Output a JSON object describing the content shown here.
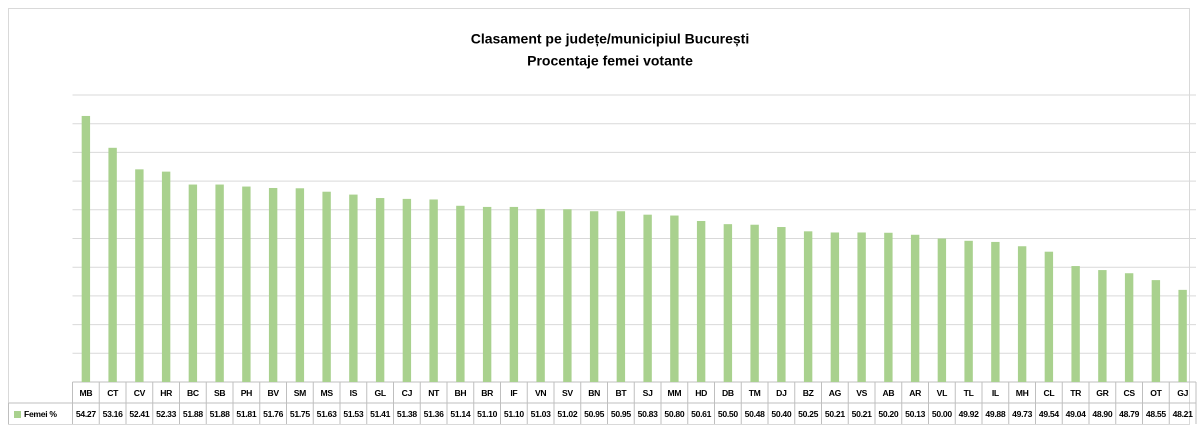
{
  "chart_data": {
    "type": "bar",
    "title": "Clasament pe județe/municipiul București",
    "subtitle": "Procentaje femei votante",
    "categories": [
      "MB",
      "CT",
      "CV",
      "HR",
      "BC",
      "SB",
      "PH",
      "BV",
      "SM",
      "MS",
      "IS",
      "GL",
      "CJ",
      "NT",
      "BH",
      "BR",
      "IF",
      "VN",
      "SV",
      "BN",
      "BT",
      "SJ",
      "MM",
      "HD",
      "DB",
      "TM",
      "DJ",
      "BZ",
      "AG",
      "VS",
      "AB",
      "AR",
      "VL",
      "TL",
      "IL",
      "MH",
      "CL",
      "TR",
      "GR",
      "CS",
      "OT",
      "GJ"
    ],
    "series": [
      {
        "name": "Femei %",
        "color": "#a9d18e",
        "values": [
          54.27,
          53.16,
          52.41,
          52.33,
          51.88,
          51.88,
          51.81,
          51.76,
          51.75,
          51.63,
          51.53,
          51.41,
          51.38,
          51.36,
          51.14,
          51.1,
          51.1,
          51.03,
          51.02,
          50.95,
          50.95,
          50.83,
          50.8,
          50.61,
          50.5,
          50.48,
          50.4,
          50.25,
          50.21,
          50.21,
          50.2,
          50.13,
          50.0,
          49.92,
          49.88,
          49.73,
          49.54,
          49.04,
          48.9,
          48.79,
          48.55,
          48.21
        ],
        "value_labels": [
          "54.27",
          "53.16",
          "52.41",
          "52.33",
          "51.88",
          "51.88",
          "51.81",
          "51.76",
          "51.75",
          "51.63",
          "51.53",
          "51.41",
          "51.38",
          "51.36",
          "51.14",
          "51.10",
          "51.10",
          "51.03",
          "51.02",
          "50.95",
          "50.95",
          "50.83",
          "50.80",
          "50.61",
          "50.50",
          "50.48",
          "50.40",
          "50.25",
          "50.21",
          "50.21",
          "50.20",
          "50.13",
          "50.00",
          "49.92",
          "49.88",
          "49.73",
          "49.54",
          "49.04",
          "48.90",
          "48.79",
          "48.55",
          "48.21"
        ]
      }
    ],
    "ylim": [
      45,
      55
    ],
    "yticks": [
      45,
      46,
      47,
      48,
      49,
      50,
      51,
      52,
      53,
      54,
      55
    ],
    "show_ytick_labels": false,
    "grid": true,
    "data_table": true
  }
}
